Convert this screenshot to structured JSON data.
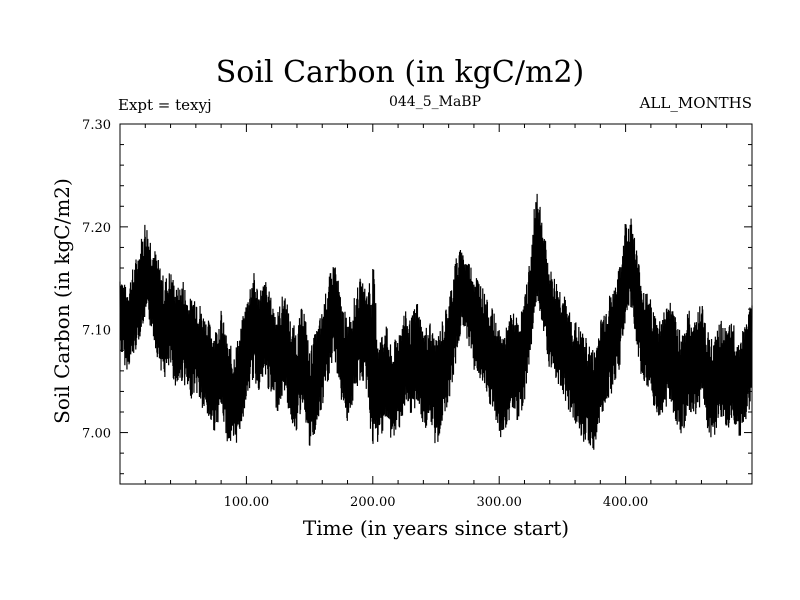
{
  "chart_data": {
    "type": "line",
    "title": "Soil Carbon (in kgC/m2)",
    "expt_label": "Expt = texyj",
    "subtitle": "044_5_MaBP",
    "months_label": "ALL_MONTHS",
    "xlabel": "Time (in years since start)",
    "ylabel": "Soil Carbon (in kgC/m2)",
    "xlim": [
      0,
      500
    ],
    "ylim": [
      6.95,
      7.3
    ],
    "xticks": [
      100,
      200,
      300,
      400
    ],
    "xtick_labels": [
      "100.00",
      "200.00",
      "300.00",
      "400.00"
    ],
    "yticks": [
      7.0,
      7.1,
      7.2,
      7.3
    ],
    "ytick_labels": [
      "7.00",
      "7.10",
      "7.20",
      "7.30"
    ],
    "line_color": "#000000",
    "grid": false,
    "series": [
      {
        "x": [
          0,
          5,
          10,
          15,
          20,
          25,
          30,
          35,
          40,
          45,
          50,
          55,
          60,
          65,
          70,
          75,
          80,
          85,
          90,
          95,
          100,
          105,
          110,
          115,
          120,
          125,
          130,
          135,
          140,
          145,
          150,
          155,
          160,
          165,
          170,
          175,
          180,
          185,
          190,
          195,
          200,
          205,
          210,
          215,
          220,
          225,
          230,
          235,
          240,
          245,
          250,
          255,
          260,
          265,
          270,
          275,
          280,
          285,
          290,
          295,
          300,
          305,
          310,
          315,
          320,
          325,
          330,
          335,
          340,
          345,
          350,
          355,
          360,
          365,
          370,
          375,
          380,
          385,
          390,
          395,
          400,
          405,
          410,
          415,
          420,
          425,
          430,
          435,
          440,
          445,
          450,
          455,
          460,
          465,
          470,
          475,
          480,
          485,
          490,
          495,
          500
        ],
        "mean": [
          7.12,
          7.1,
          7.11,
          7.13,
          7.15,
          7.14,
          7.12,
          7.1,
          7.11,
          7.09,
          7.1,
          7.08,
          7.09,
          7.07,
          7.06,
          7.05,
          7.07,
          7.04,
          7.03,
          7.05,
          7.08,
          7.1,
          7.09,
          7.1,
          7.08,
          7.07,
          7.09,
          7.06,
          7.05,
          7.08,
          7.03,
          7.05,
          7.07,
          7.1,
          7.12,
          7.08,
          7.06,
          7.08,
          7.1,
          7.09,
          7.05,
          7.04,
          7.06,
          7.03,
          7.05,
          7.07,
          7.06,
          7.08,
          7.05,
          7.06,
          7.04,
          7.06,
          7.08,
          7.11,
          7.14,
          7.13,
          7.11,
          7.1,
          7.08,
          7.07,
          7.05,
          7.05,
          7.07,
          7.06,
          7.08,
          7.12,
          7.18,
          7.15,
          7.11,
          7.1,
          7.09,
          7.07,
          7.06,
          7.05,
          7.04,
          7.03,
          7.06,
          7.08,
          7.09,
          7.11,
          7.15,
          7.16,
          7.12,
          7.09,
          7.08,
          7.06,
          7.07,
          7.08,
          7.06,
          7.05,
          7.07,
          7.06,
          7.08,
          7.05,
          7.04,
          7.06,
          7.05,
          7.06,
          7.04,
          7.06,
          7.08
        ],
        "low": [
          7.08,
          7.06,
          7.07,
          7.09,
          7.11,
          7.1,
          7.07,
          7.05,
          7.06,
          7.04,
          7.05,
          7.03,
          7.04,
          7.02,
          7.01,
          7.0,
          7.02,
          6.99,
          6.98,
          7.0,
          7.03,
          7.05,
          7.04,
          7.05,
          7.03,
          7.02,
          7.04,
          7.01,
          7.0,
          7.03,
          6.98,
          7.0,
          7.02,
          7.05,
          7.07,
          7.03,
          7.01,
          7.03,
          7.05,
          7.04,
          6.98,
          6.99,
          7.01,
          6.99,
          7.0,
          7.02,
          7.01,
          7.03,
          7.0,
          7.01,
          6.98,
          7.01,
          7.03,
          7.06,
          7.1,
          7.09,
          7.06,
          7.05,
          7.03,
          7.02,
          6.99,
          7.0,
          7.02,
          7.01,
          7.03,
          7.08,
          7.13,
          7.1,
          7.06,
          7.05,
          7.04,
          7.02,
          7.01,
          6.99,
          6.99,
          6.98,
          7.01,
          7.03,
          7.04,
          7.06,
          7.11,
          7.12,
          7.07,
          7.04,
          7.03,
          7.01,
          7.02,
          7.03,
          7.01,
          6.99,
          7.02,
          7.01,
          7.03,
          7.0,
          6.99,
          7.01,
          7.0,
          7.01,
          6.99,
          7.01,
          7.03
        ],
        "high": [
          7.16,
          7.14,
          7.16,
          7.18,
          7.21,
          7.19,
          7.17,
          7.15,
          7.16,
          7.14,
          7.15,
          7.13,
          7.14,
          7.12,
          7.11,
          7.1,
          7.12,
          7.09,
          7.08,
          7.1,
          7.13,
          7.16,
          7.14,
          7.15,
          7.13,
          7.12,
          7.14,
          7.11,
          7.1,
          7.13,
          7.08,
          7.1,
          7.12,
          7.15,
          7.17,
          7.13,
          7.11,
          7.13,
          7.15,
          7.14,
          7.17,
          7.09,
          7.11,
          7.08,
          7.1,
          7.12,
          7.11,
          7.13,
          7.1,
          7.11,
          7.09,
          7.11,
          7.13,
          7.17,
          7.18,
          7.17,
          7.16,
          7.15,
          7.13,
          7.12,
          7.1,
          7.1,
          7.12,
          7.11,
          7.13,
          7.18,
          7.25,
          7.2,
          7.16,
          7.15,
          7.14,
          7.12,
          7.11,
          7.1,
          7.09,
          7.08,
          7.11,
          7.13,
          7.14,
          7.16,
          7.21,
          7.21,
          7.17,
          7.14,
          7.13,
          7.11,
          7.12,
          7.13,
          7.11,
          7.1,
          7.12,
          7.11,
          7.13,
          7.1,
          7.09,
          7.11,
          7.1,
          7.11,
          7.09,
          7.11,
          7.13
        ]
      }
    ]
  }
}
